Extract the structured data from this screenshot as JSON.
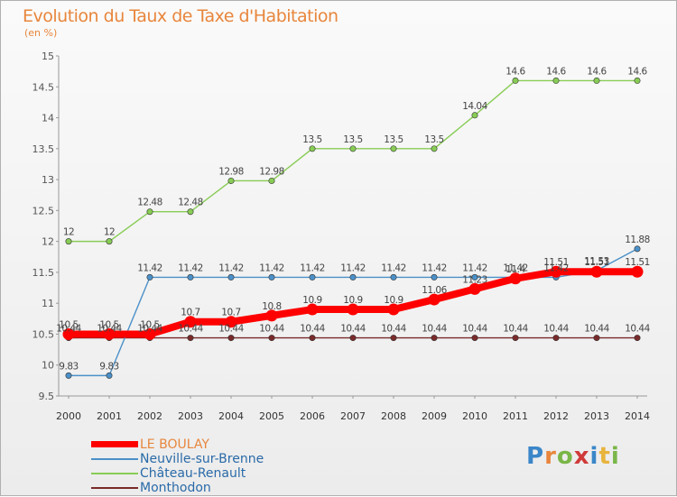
{
  "title": "Evolution du Taux de Taxe d'Habitation",
  "subtitle": "(en %)",
  "logo": "Proxiti",
  "chart_data": {
    "type": "line",
    "x": [
      "2000",
      "2001",
      "2002",
      "2003",
      "2004",
      "2005",
      "2006",
      "2007",
      "2008",
      "2009",
      "2010",
      "2011",
      "2012",
      "2013",
      "2014"
    ],
    "ylim": [
      9.5,
      15
    ],
    "yticks": [
      "9.5",
      "10",
      "10.5",
      "11",
      "11.5",
      "12",
      "12.5",
      "13",
      "13.5",
      "14",
      "14.5",
      "15"
    ],
    "grid": false,
    "legend_placement": "bottom-left",
    "series": [
      {
        "name": "LE BOULAY",
        "color": "#ff0000",
        "values": [
          10.5,
          10.5,
          10.5,
          10.7,
          10.7,
          10.8,
          10.9,
          10.9,
          10.9,
          11.06,
          11.23,
          11.4,
          11.51,
          11.51,
          11.51
        ],
        "labels": [
          "10.5",
          "10.5",
          "10.5",
          "10.7",
          "10.7",
          "10.8",
          "10.9",
          "10.9",
          "10.9",
          "11.06",
          "11.23",
          "11.4",
          "11.51",
          "11.51",
          "11.51"
        ]
      },
      {
        "name": "Neuville-sur-Brenne",
        "color": "#4b90c8",
        "values": [
          9.83,
          9.83,
          11.42,
          11.42,
          11.42,
          11.42,
          11.42,
          11.42,
          11.42,
          11.42,
          11.42,
          11.42,
          11.42,
          11.53,
          11.88
        ],
        "labels": [
          "9.83",
          "9.83",
          "11.42",
          "11.42",
          "11.42",
          "11.42",
          "11.42",
          "11.42",
          "11.42",
          "11.42",
          "11.42",
          "11.42",
          "11.42",
          "11.53",
          "11.88"
        ]
      },
      {
        "name": "Château-Renault",
        "color": "#88cc55",
        "values": [
          12,
          12,
          12.48,
          12.48,
          12.98,
          12.98,
          13.5,
          13.5,
          13.5,
          13.5,
          14.04,
          14.6,
          14.6,
          14.6,
          14.6
        ],
        "labels": [
          "12",
          "12",
          "12.48",
          "12.48",
          "12.98",
          "12.98",
          "13.5",
          "13.5",
          "13.5",
          "13.5",
          "14.04",
          "14.6",
          "14.6",
          "14.6",
          "14.6"
        ]
      },
      {
        "name": "Monthodon",
        "color": "#7a2a2a",
        "values": [
          10.44,
          10.44,
          10.44,
          10.44,
          10.44,
          10.44,
          10.44,
          10.44,
          10.44,
          10.44,
          10.44,
          10.44,
          10.44,
          10.44,
          10.44
        ],
        "labels": [
          "10.44",
          "10.44",
          "10.44",
          "10.44",
          "10.44",
          "10.44",
          "10.44",
          "10.44",
          "10.44",
          "10.44",
          "10.44",
          "10.44",
          "10.44",
          "10.44",
          "10.44"
        ]
      }
    ]
  },
  "legend": [
    {
      "label": "LE BOULAY",
      "color": "#ff0000"
    },
    {
      "label": "Neuville-sur-Brenne",
      "color": "#4b90c8"
    },
    {
      "label": "Château-Renault",
      "color": "#88cc55"
    },
    {
      "label": "Monthodon",
      "color": "#7a2a2a"
    }
  ]
}
